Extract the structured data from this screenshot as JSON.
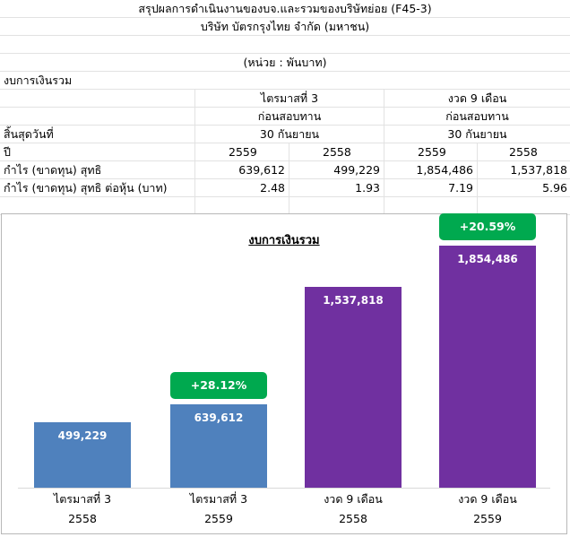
{
  "header": {
    "title": "สรุปผลการดำเนินงานของบจ.และรวมของบริษัทย่อย (F45-3)",
    "company": "บริษัท บัตรกรุงไทย จำกัด (มหาชน)",
    "unit": "(หน่วย : พันบาท)"
  },
  "table": {
    "section": "งบการเงินรวม",
    "groups": [
      {
        "label": "ไตรมาสที่ 3",
        "status": "ก่อนสอบทาน",
        "end_date": "30 กันยายน"
      },
      {
        "label": "งวด 9 เดือน",
        "status": "ก่อนสอบทาน",
        "end_date": "30 กันยายน"
      }
    ],
    "row_end_label": "สิ้นสุดวันที่",
    "row_year_label": "ปี",
    "years": [
      "2559",
      "2558",
      "2559",
      "2558"
    ],
    "rows": [
      {
        "label": "กำไร (ขาดทุน) สุทธิ",
        "values": [
          "639,612",
          "499,229",
          "1,854,486",
          "1,537,818"
        ]
      },
      {
        "label": "กำไร (ขาดทุน) สุทธิ ต่อหุ้น (บาท)",
        "values": [
          "2.48",
          "1.93",
          "7.19",
          "5.96"
        ]
      }
    ]
  },
  "chart_data": {
    "type": "bar",
    "title": "งบการเงินรวม",
    "categories": [
      {
        "period": "ไตรมาสที่ 3",
        "year": "2558"
      },
      {
        "period": "ไตรมาสที่ 3",
        "year": "2559"
      },
      {
        "period": "งวด 9 เดือน",
        "year": "2558"
      },
      {
        "period": "งวด 9 เดือน",
        "year": "2559"
      }
    ],
    "values": [
      499229,
      639612,
      1537818,
      1854486
    ],
    "value_labels": [
      "499,229",
      "639,612",
      "1,537,818",
      "1,854,486"
    ],
    "bar_colors": [
      "#4f81bd",
      "#4f81bd",
      "#7030a0",
      "#7030a0"
    ],
    "growth_badges": [
      {
        "bar_index": 1,
        "text": "+28.12%"
      },
      {
        "bar_index": 3,
        "text": "+20.59%"
      }
    ],
    "badge_color": "#00a94f",
    "ylim": [
      0,
      1854486
    ]
  }
}
